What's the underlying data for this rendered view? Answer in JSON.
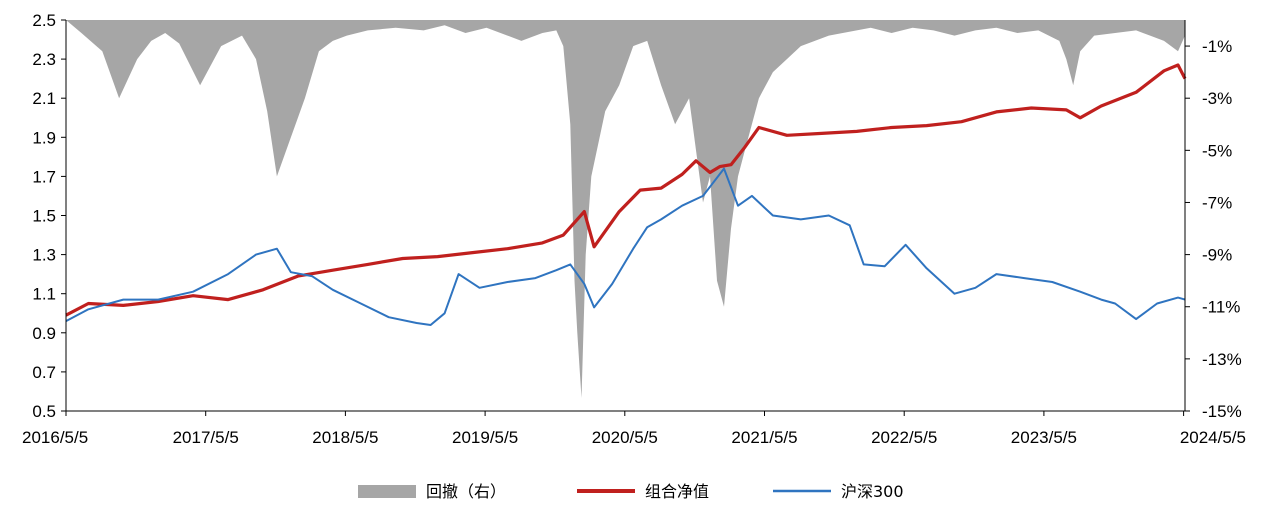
{
  "chart_data": {
    "type": "line",
    "left_axis": {
      "min": 0.5,
      "max": 2.5,
      "ticks": [
        "2.5",
        "2.3",
        "2.1",
        "1.9",
        "1.7",
        "1.5",
        "1.3",
        "1.1",
        "0.9",
        "0.7",
        "0.5"
      ]
    },
    "right_axis": {
      "min": -15,
      "max": 0,
      "ticks": [
        "-1%",
        "-3%",
        "-5%",
        "-7%",
        "-9%",
        "-11%",
        "-13%",
        "-15%"
      ]
    },
    "x_ticks": [
      "2016/5/5",
      "2017/5/5",
      "2018/5/5",
      "2019/5/5",
      "2020/5/5",
      "2021/5/5",
      "2022/5/5",
      "2023/5/5",
      "2024/5/5"
    ],
    "x_range": [
      2016.34,
      2024.35
    ],
    "legend": [
      {
        "name": "回撤（右）",
        "color": "#a6a6a6",
        "kind": "area"
      },
      {
        "name": "组合净值",
        "color": "#c0201e",
        "kind": "line"
      },
      {
        "name": "沪深300",
        "color": "#2f74c0",
        "kind": "line"
      }
    ],
    "series": [
      {
        "name": "组合净值",
        "color": "#c0201e",
        "x": [
          2016.34,
          2016.5,
          2016.75,
          2017.0,
          2017.25,
          2017.5,
          2017.75,
          2018.0,
          2018.25,
          2018.5,
          2018.75,
          2019.0,
          2019.25,
          2019.5,
          2019.75,
          2019.9,
          2020.05,
          2020.12,
          2020.3,
          2020.45,
          2020.6,
          2020.75,
          2020.85,
          2020.95,
          2021.02,
          2021.1,
          2021.2,
          2021.3,
          2021.5,
          2021.75,
          2022.0,
          2022.25,
          2022.5,
          2022.75,
          2023.0,
          2023.25,
          2023.5,
          2023.6,
          2023.75,
          2024.0,
          2024.2,
          2024.3,
          2024.35
        ],
        "values": [
          0.99,
          1.05,
          1.04,
          1.06,
          1.09,
          1.07,
          1.12,
          1.19,
          1.22,
          1.25,
          1.28,
          1.29,
          1.31,
          1.33,
          1.36,
          1.4,
          1.52,
          1.34,
          1.52,
          1.63,
          1.64,
          1.71,
          1.78,
          1.72,
          1.75,
          1.76,
          1.85,
          1.95,
          1.91,
          1.92,
          1.93,
          1.95,
          1.96,
          1.98,
          2.03,
          2.05,
          2.04,
          2.0,
          2.06,
          2.13,
          2.24,
          2.27,
          2.2
        ]
      },
      {
        "name": "沪深300",
        "color": "#2f74c0",
        "x": [
          2016.34,
          2016.5,
          2016.75,
          2017.0,
          2017.25,
          2017.5,
          2017.7,
          2017.85,
          2017.95,
          2018.1,
          2018.25,
          2018.45,
          2018.65,
          2018.85,
          2018.95,
          2019.05,
          2019.15,
          2019.3,
          2019.5,
          2019.7,
          2019.85,
          2019.95,
          2020.05,
          2020.12,
          2020.25,
          2020.4,
          2020.5,
          2020.6,
          2020.75,
          2020.9,
          2021.05,
          2021.15,
          2021.25,
          2021.4,
          2021.6,
          2021.8,
          2021.95,
          2022.05,
          2022.2,
          2022.35,
          2022.5,
          2022.7,
          2022.85,
          2023.0,
          2023.2,
          2023.4,
          2023.6,
          2023.75,
          2023.85,
          2024.0,
          2024.15,
          2024.3,
          2024.35
        ],
        "values": [
          0.96,
          1.02,
          1.07,
          1.07,
          1.11,
          1.2,
          1.3,
          1.33,
          1.21,
          1.19,
          1.12,
          1.05,
          0.98,
          0.95,
          0.94,
          1.0,
          1.2,
          1.13,
          1.16,
          1.18,
          1.22,
          1.25,
          1.15,
          1.03,
          1.15,
          1.33,
          1.44,
          1.48,
          1.55,
          1.6,
          1.74,
          1.55,
          1.6,
          1.5,
          1.48,
          1.5,
          1.45,
          1.25,
          1.24,
          1.35,
          1.23,
          1.1,
          1.13,
          1.2,
          1.18,
          1.16,
          1.11,
          1.07,
          1.05,
          0.97,
          1.05,
          1.08,
          1.07
        ]
      },
      {
        "name": "回撤（右）",
        "color": "#a6a6a6",
        "x": [
          2016.34,
          2016.45,
          2016.6,
          2016.72,
          2016.85,
          2016.95,
          2017.05,
          2017.15,
          2017.3,
          2017.45,
          2017.6,
          2017.7,
          2017.78,
          2017.85,
          2017.95,
          2018.05,
          2018.15,
          2018.25,
          2018.35,
          2018.5,
          2018.7,
          2018.9,
          2019.05,
          2019.2,
          2019.35,
          2019.5,
          2019.6,
          2019.75,
          2019.85,
          2019.9,
          2019.95,
          2019.98,
          2020.0,
          2020.03,
          2020.06,
          2020.1,
          2020.2,
          2020.3,
          2020.4,
          2020.5,
          2020.6,
          2020.7,
          2020.8,
          2020.85,
          2020.9,
          2020.95,
          2021.0,
          2021.05,
          2021.1,
          2021.15,
          2021.2,
          2021.3,
          2021.4,
          2021.5,
          2021.6,
          2021.7,
          2021.8,
          2021.9,
          2022.0,
          2022.1,
          2022.25,
          2022.4,
          2022.55,
          2022.7,
          2022.85,
          2023.0,
          2023.15,
          2023.3,
          2023.45,
          2023.5,
          2023.55,
          2023.6,
          2023.7,
          2023.85,
          2024.0,
          2024.1,
          2024.2,
          2024.3,
          2024.35
        ],
        "values": [
          0,
          -0.5,
          -1.2,
          -3.0,
          -1.5,
          -0.8,
          -0.5,
          -0.9,
          -2.5,
          -1.0,
          -0.6,
          -1.5,
          -3.5,
          -6.0,
          -4.5,
          -3.0,
          -1.2,
          -0.8,
          -0.6,
          -0.4,
          -0.3,
          -0.4,
          -0.2,
          -0.5,
          -0.3,
          -0.6,
          -0.8,
          -0.5,
          -0.4,
          -1.0,
          -4.0,
          -10.0,
          -12.0,
          -14.5,
          -9.0,
          -6.0,
          -3.5,
          -2.5,
          -1.0,
          -0.8,
          -2.5,
          -4.0,
          -3.0,
          -5.0,
          -7.0,
          -6.0,
          -10.0,
          -11.0,
          -8.0,
          -6.0,
          -5.0,
          -3.0,
          -2.0,
          -1.5,
          -1.0,
          -0.8,
          -0.6,
          -0.5,
          -0.4,
          -0.3,
          -0.5,
          -0.3,
          -0.4,
          -0.6,
          -0.4,
          -0.3,
          -0.5,
          -0.4,
          -0.8,
          -1.5,
          -2.5,
          -1.2,
          -0.6,
          -0.5,
          -0.4,
          -0.6,
          -0.8,
          -1.2,
          -0.6
        ]
      }
    ]
  }
}
